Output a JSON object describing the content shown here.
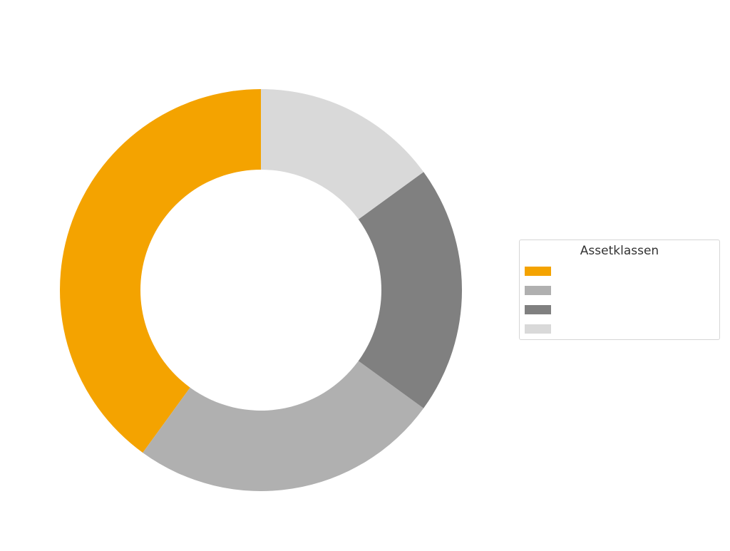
{
  "chart_data": {
    "type": "pie",
    "donut": true,
    "title": "",
    "legend": {
      "title": "Assetklassen",
      "placement": "right"
    },
    "slices": [
      {
        "name": "",
        "value": 40,
        "color": "#F4A300"
      },
      {
        "name": "",
        "value": 25,
        "color": "#B0B0B0"
      },
      {
        "name": "",
        "value": 20,
        "color": "#808080"
      },
      {
        "name": "",
        "value": 15,
        "color": "#D9D9D9"
      }
    ],
    "start_angle_deg": 90,
    "direction": "counterclockwise"
  }
}
